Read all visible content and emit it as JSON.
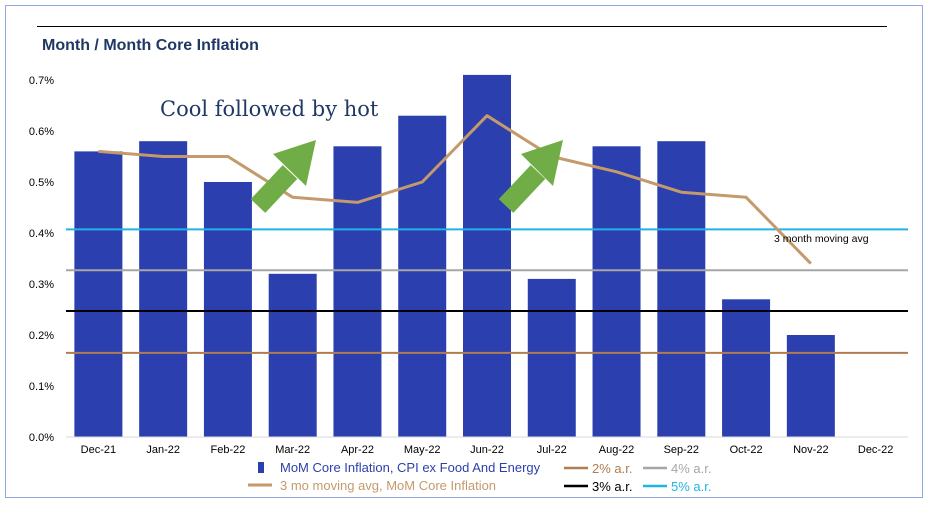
{
  "chart_data": {
    "type": "bar",
    "title": "Month / Month Core Inflation",
    "categories": [
      "Dec-21",
      "Jan-22",
      "Feb-22",
      "Mar-22",
      "Apr-22",
      "May-22",
      "Jun-22",
      "Jul-22",
      "Aug-22",
      "Sep-22",
      "Oct-22",
      "Nov-22",
      "Dec-22"
    ],
    "ylim": [
      0,
      0.7
    ],
    "yticks": [
      "0.0%",
      "0.1%",
      "0.2%",
      "0.3%",
      "0.4%",
      "0.5%",
      "0.6%",
      "0.7%"
    ],
    "series": [
      {
        "name": "MoM Core Inflation, CPI ex Food And Energy",
        "kind": "bar",
        "color": "#2b3fae",
        "values": [
          0.56,
          0.58,
          0.5,
          0.32,
          0.57,
          0.63,
          0.71,
          0.31,
          0.57,
          0.58,
          0.27,
          0.2,
          null
        ]
      },
      {
        "name": "3 mo moving avg, MoM Core Inflation",
        "kind": "line",
        "color": "#c49a6c",
        "values": [
          0.56,
          0.55,
          0.55,
          0.47,
          0.46,
          0.5,
          0.63,
          0.55,
          0.52,
          0.48,
          0.47,
          0.34,
          null
        ]
      }
    ],
    "reference_lines": [
      {
        "name": "2% a.r.",
        "value": 0.165,
        "color": "#b07c50"
      },
      {
        "name": "3% a.r.",
        "value": 0.247,
        "color": "#000000"
      },
      {
        "name": "4% a.r.",
        "value": 0.327,
        "color": "#a6a6a6"
      },
      {
        "name": "5% a.r.",
        "value": 0.407,
        "color": "#1fb4e6"
      }
    ],
    "annotations": [
      {
        "text": "Cool followed by hot"
      },
      {
        "text": "3 month moving avg"
      }
    ],
    "legend_position": "bottom",
    "grid": false
  }
}
